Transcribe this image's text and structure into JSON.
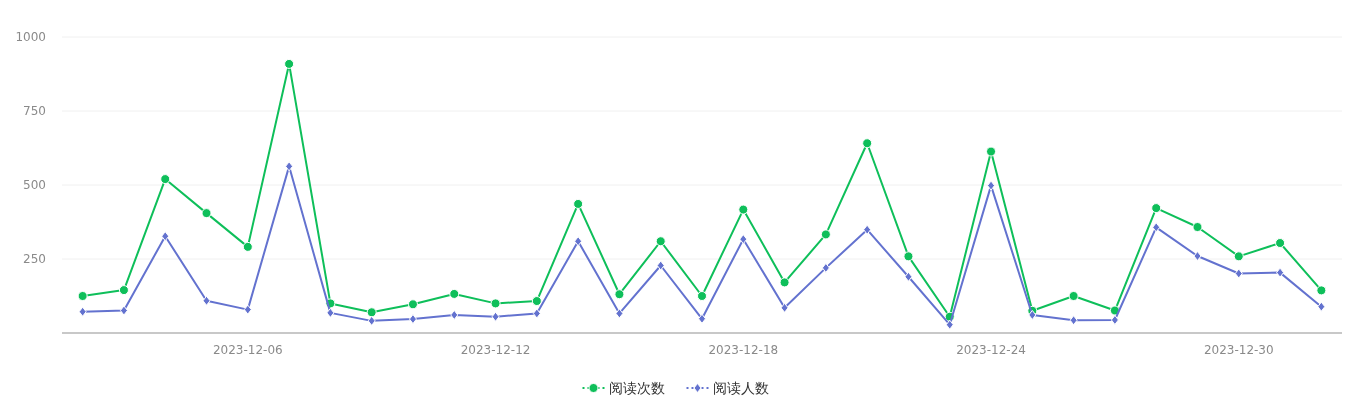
{
  "chart_data": {
    "type": "line",
    "x": [
      "2023-12-02",
      "2023-12-03",
      "2023-12-04",
      "2023-12-05",
      "2023-12-06",
      "2023-12-07",
      "2023-12-08",
      "2023-12-09",
      "2023-12-10",
      "2023-12-11",
      "2023-12-12",
      "2023-12-13",
      "2023-12-14",
      "2023-12-15",
      "2023-12-16",
      "2023-12-17",
      "2023-12-18",
      "2023-12-19",
      "2023-12-20",
      "2023-12-21",
      "2023-12-22",
      "2023-12-23",
      "2023-12-24",
      "2023-12-25",
      "2023-12-26",
      "2023-12-27",
      "2023-12-28",
      "2023-12-29",
      "2023-12-30",
      "2023-12-31",
      "2024-01-01"
    ],
    "series": [
      {
        "name": "阅读次数",
        "color": "#0ebf5a",
        "marker": "circle",
        "values": [
          125,
          145,
          520,
          405,
          291,
          909,
          100,
          70,
          97,
          132,
          100,
          108,
          436,
          131,
          310,
          125,
          417,
          171,
          333,
          641,
          259,
          55,
          613,
          75,
          125,
          76,
          422,
          358,
          259,
          304,
          144
        ]
      },
      {
        "name": "阅读人数",
        "color": "#6372cf",
        "marker": "diamond",
        "values": [
          72,
          76,
          327,
          109,
          79,
          563,
          68,
          41,
          47,
          61,
          55,
          66,
          310,
          66,
          228,
          48,
          317,
          85,
          220,
          349,
          190,
          28,
          498,
          61,
          43,
          44,
          357,
          260,
          201,
          204,
          89
        ]
      }
    ],
    "xlim": [
      "2023-12-01T12:00",
      "2024-01-01T12:00"
    ],
    "xticks": [
      "2023-12-06",
      "2023-12-12",
      "2023-12-18",
      "2023-12-24",
      "2023-12-30"
    ],
    "ylim": [
      0,
      1000
    ],
    "yticks": [
      250,
      500,
      750,
      1000
    ],
    "grid": "y",
    "legend": "bottom"
  }
}
